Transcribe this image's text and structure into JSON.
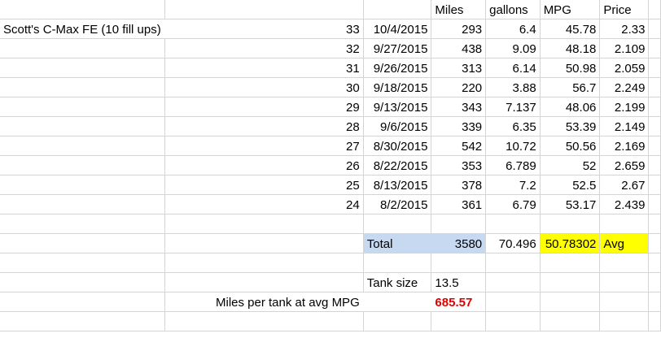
{
  "sheet": {
    "headers": {
      "miles": "Miles",
      "gallons": "gallons",
      "mpg": "MPG",
      "price": "Price"
    },
    "title": "Scott's C-Max FE (10 fill ups)",
    "rows": [
      {
        "num": "33",
        "date": "10/4/2015",
        "miles": "293",
        "gallons": "6.4",
        "mpg": "45.78",
        "price": "2.33"
      },
      {
        "num": "32",
        "date": "9/27/2015",
        "miles": "438",
        "gallons": "9.09",
        "mpg": "48.18",
        "price": "2.109"
      },
      {
        "num": "31",
        "date": "9/26/2015",
        "miles": "313",
        "gallons": "6.14",
        "mpg": "50.98",
        "price": "2.059"
      },
      {
        "num": "30",
        "date": "9/18/2015",
        "miles": "220",
        "gallons": "3.88",
        "mpg": "56.7",
        "price": "2.249"
      },
      {
        "num": "29",
        "date": "9/13/2015",
        "miles": "343",
        "gallons": "7.137",
        "mpg": "48.06",
        "price": "2.199"
      },
      {
        "num": "28",
        "date": "9/6/2015",
        "miles": "339",
        "gallons": "6.35",
        "mpg": "53.39",
        "price": "2.149"
      },
      {
        "num": "27",
        "date": "8/30/2015",
        "miles": "542",
        "gallons": "10.72",
        "mpg": "50.56",
        "price": "2.169"
      },
      {
        "num": "26",
        "date": "8/22/2015",
        "miles": "353",
        "gallons": "6.789",
        "mpg": "52",
        "price": "2.659"
      },
      {
        "num": "25",
        "date": "8/13/2015",
        "miles": "378",
        "gallons": "7.2",
        "mpg": "52.5",
        "price": "2.67"
      },
      {
        "num": "24",
        "date": "8/2/2015",
        "miles": "361",
        "gallons": "6.79",
        "mpg": "53.17",
        "price": "2.439"
      }
    ],
    "total": {
      "label": "Total",
      "miles": "3580",
      "gallons": "70.496",
      "mpg": "50.78302",
      "avg_label": "Avg"
    },
    "tank": {
      "label": "Tank size",
      "value": "13.5"
    },
    "per_tank": {
      "label": "Miles per tank at avg MPG",
      "value": "685.57"
    },
    "colors": {
      "total_fill": "#c6d9f0",
      "avg_fill": "#ffff00",
      "result_text": "#e00000",
      "gridline": "#d4d4d4"
    }
  }
}
